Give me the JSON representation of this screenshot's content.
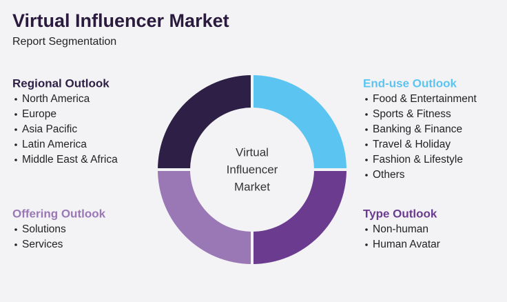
{
  "header": {
    "title": "Virtual Influencer Market",
    "subtitle": "Report Segmentation"
  },
  "center": {
    "lines": [
      "Virtual",
      "Influencer",
      "Market"
    ]
  },
  "sections": [
    {
      "heading": "Regional Outlook",
      "items": [
        "North America",
        "Europe",
        "Asia Pacific",
        "Latin America",
        "Middle East & Africa"
      ]
    },
    {
      "heading": "Offering Outlook",
      "items": [
        "Solutions",
        "Services"
      ]
    },
    {
      "heading": "End-use Outlook",
      "items": [
        "Food & Entertainment",
        "Sports & Fitness",
        "Banking & Finance",
        "Travel & Holiday",
        "Fashion & Lifestyle",
        "Others"
      ]
    },
    {
      "heading": "Type Outlook",
      "items": [
        "Non-human",
        "Human Avatar"
      ]
    }
  ]
}
